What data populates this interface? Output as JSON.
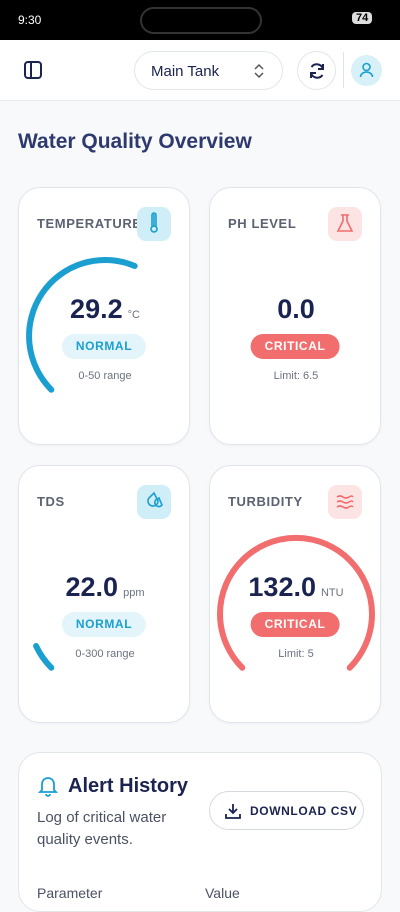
{
  "status_bar": {
    "time": "9:30",
    "battery": "74"
  },
  "header": {
    "tank_selector": "Main Tank"
  },
  "page_title": "Water Quality Overview",
  "cards": [
    {
      "label": "TEMPERATURE",
      "value": "29.2",
      "unit": "°C",
      "status": "NORMAL",
      "note": "0-50 range"
    },
    {
      "label": "PH LEVEL",
      "value": "0.0",
      "status": "CRITICAL",
      "note": "Limit: 6.5"
    },
    {
      "label": "TDS",
      "value": "22.0",
      "unit": "ppm",
      "status": "NORMAL",
      "note": "0-300 range"
    },
    {
      "label": "TURBIDITY",
      "value": "132.0",
      "unit": "NTU",
      "status": "CRITICAL",
      "note": "Limit: 5"
    }
  ],
  "alert_history": {
    "title": "Alert History",
    "description": "Log of critical water quality events.",
    "button": "DOWNLOAD CSV",
    "table_headers": [
      "Parameter",
      "Value"
    ]
  }
}
